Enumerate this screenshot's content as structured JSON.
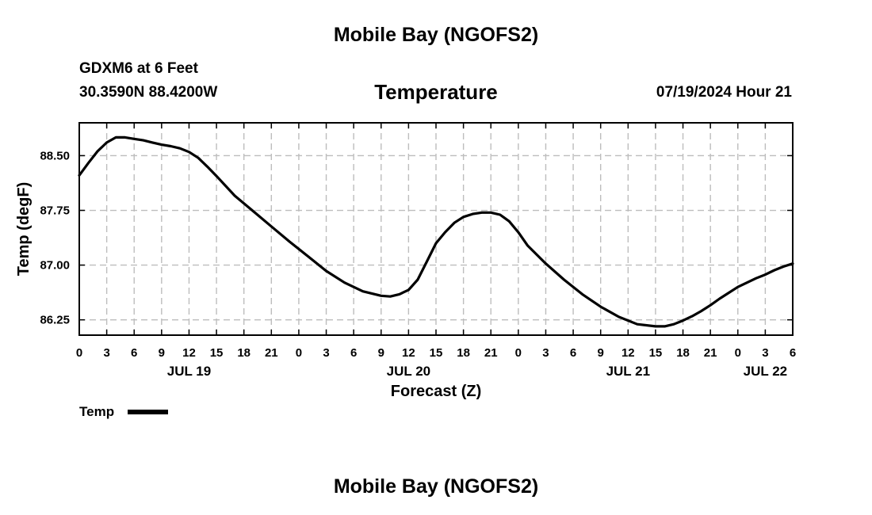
{
  "page": {
    "top_title": "Mobile Bay (NGOFS2)",
    "bottom_title": "Mobile Bay (NGOFS2)",
    "station_line": "GDXM6 at 6 Feet",
    "coords_line": "30.3590N  88.4200W",
    "run_time": "07/19/2024 Hour 21"
  },
  "chart_data": {
    "type": "line",
    "title": "Temperature",
    "xlabel": "Forecast (Z)",
    "ylabel": "Temp (degF)",
    "xlim": [
      0,
      78
    ],
    "ylim": [
      86.04,
      88.95
    ],
    "grid": true,
    "yticks": [
      86.25,
      87.0,
      87.75,
      88.5
    ],
    "ytick_labels": [
      "86.25",
      "87.00",
      "87.75",
      "88.50"
    ],
    "xticks": [
      0,
      3,
      6,
      9,
      12,
      15,
      18,
      21,
      24,
      27,
      30,
      33,
      36,
      39,
      42,
      45,
      48,
      51,
      54,
      57,
      60,
      63,
      66,
      69,
      72,
      75,
      78
    ],
    "xtick_labels": [
      "0",
      "3",
      "6",
      "9",
      "12",
      "15",
      "18",
      "21",
      "0",
      "3",
      "6",
      "9",
      "12",
      "15",
      "18",
      "21",
      "0",
      "3",
      "6",
      "9",
      "12",
      "15",
      "18",
      "21",
      "0",
      "3",
      "6"
    ],
    "date_labels": [
      {
        "x": 12,
        "label": "JUL 19"
      },
      {
        "x": 36,
        "label": "JUL 20"
      },
      {
        "x": 60,
        "label": "JUL 21"
      },
      {
        "x": 75,
        "label": "JUL 22"
      }
    ],
    "legend": {
      "position": "bottom-left",
      "entries": [
        "Temp"
      ]
    },
    "series": [
      {
        "name": "Temp",
        "x": [
          0,
          1,
          2,
          3,
          4,
          5,
          6,
          7,
          8,
          9,
          10,
          11,
          12,
          13,
          14,
          15,
          17,
          19,
          21,
          23,
          25,
          27,
          29,
          31,
          33,
          34,
          35,
          36,
          37,
          38,
          39,
          40,
          41,
          42,
          43,
          44,
          45,
          46,
          47,
          48,
          49,
          51,
          53,
          55,
          57,
          59,
          61,
          63,
          64,
          65,
          66,
          67,
          68,
          69,
          70,
          71,
          72,
          73,
          74,
          75,
          76,
          77,
          78
        ],
        "y": [
          88.23,
          88.4,
          88.56,
          88.68,
          88.75,
          88.75,
          88.73,
          88.71,
          88.68,
          88.65,
          88.63,
          88.6,
          88.55,
          88.47,
          88.35,
          88.22,
          87.95,
          87.74,
          87.53,
          87.32,
          87.12,
          86.92,
          86.76,
          86.64,
          86.58,
          86.57,
          86.6,
          86.66,
          86.8,
          87.05,
          87.3,
          87.45,
          87.58,
          87.66,
          87.7,
          87.72,
          87.72,
          87.69,
          87.6,
          87.45,
          87.27,
          87.02,
          86.8,
          86.6,
          86.43,
          86.29,
          86.19,
          86.16,
          86.16,
          86.19,
          86.24,
          86.3,
          86.37,
          86.45,
          86.54,
          86.62,
          86.7,
          86.76,
          86.82,
          86.87,
          86.93,
          86.98,
          87.02
        ]
      }
    ]
  }
}
